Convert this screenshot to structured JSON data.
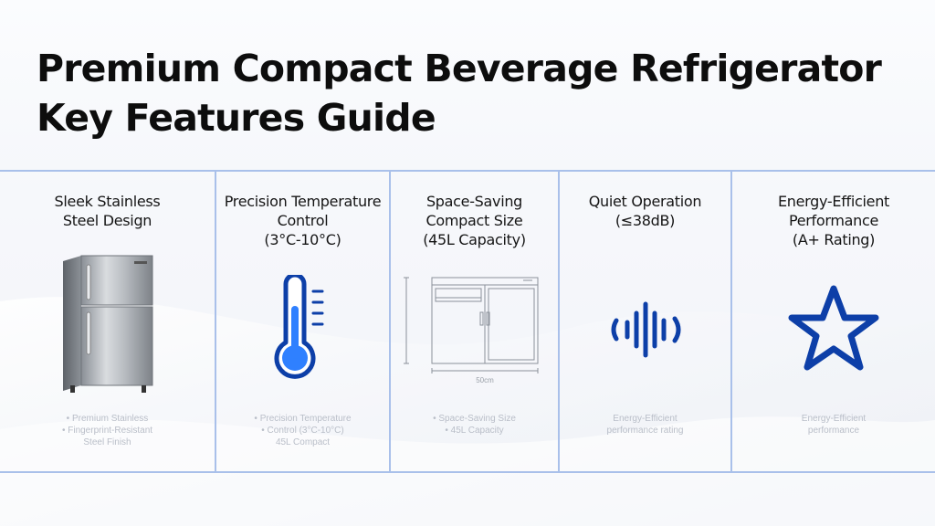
{
  "title": {
    "line1": "Premium Compact Beverage Refrigerator",
    "line2": "Key Features Guide"
  },
  "colors": {
    "accent": "#0d3fa8",
    "thermo_fill": "#2f80ff",
    "divider": "#a9c0ea"
  },
  "features": [
    {
      "title_lines": [
        "Sleek Stainless",
        "Steel Design"
      ],
      "icon": "refrigerator-icon",
      "faint_lines": [
        "• Premium Stainless",
        "• Fingerprint-Resistant",
        "Steel Finish"
      ]
    },
    {
      "title_lines": [
        "Precision Temperature",
        "Control",
        "(3°C-10°C)"
      ],
      "icon": "thermometer-icon",
      "faint_lines": [
        "• Precision Temperature",
        "• Control (3°C-10°C)",
        "45L Compact"
      ]
    },
    {
      "title_lines": [
        "Space-Saving",
        "Compact Size",
        "(45L Capacity)"
      ],
      "icon": "dimension-diagram-icon",
      "diagram_label": "50cm",
      "faint_lines": [
        "• Space-Saving Size",
        "• 45L Capacity"
      ]
    },
    {
      "title_lines": [
        "Quiet Operation",
        "(≤38dB)"
      ],
      "icon": "sound-wave-icon",
      "faint_lines": [
        "Energy-Efficient",
        "performance rating"
      ]
    },
    {
      "title_lines": [
        "Energy-Efficient",
        "Performance",
        "(A+ Rating)"
      ],
      "icon": "star-icon",
      "faint_lines": [
        "Energy-Efficient",
        "performance"
      ]
    }
  ]
}
